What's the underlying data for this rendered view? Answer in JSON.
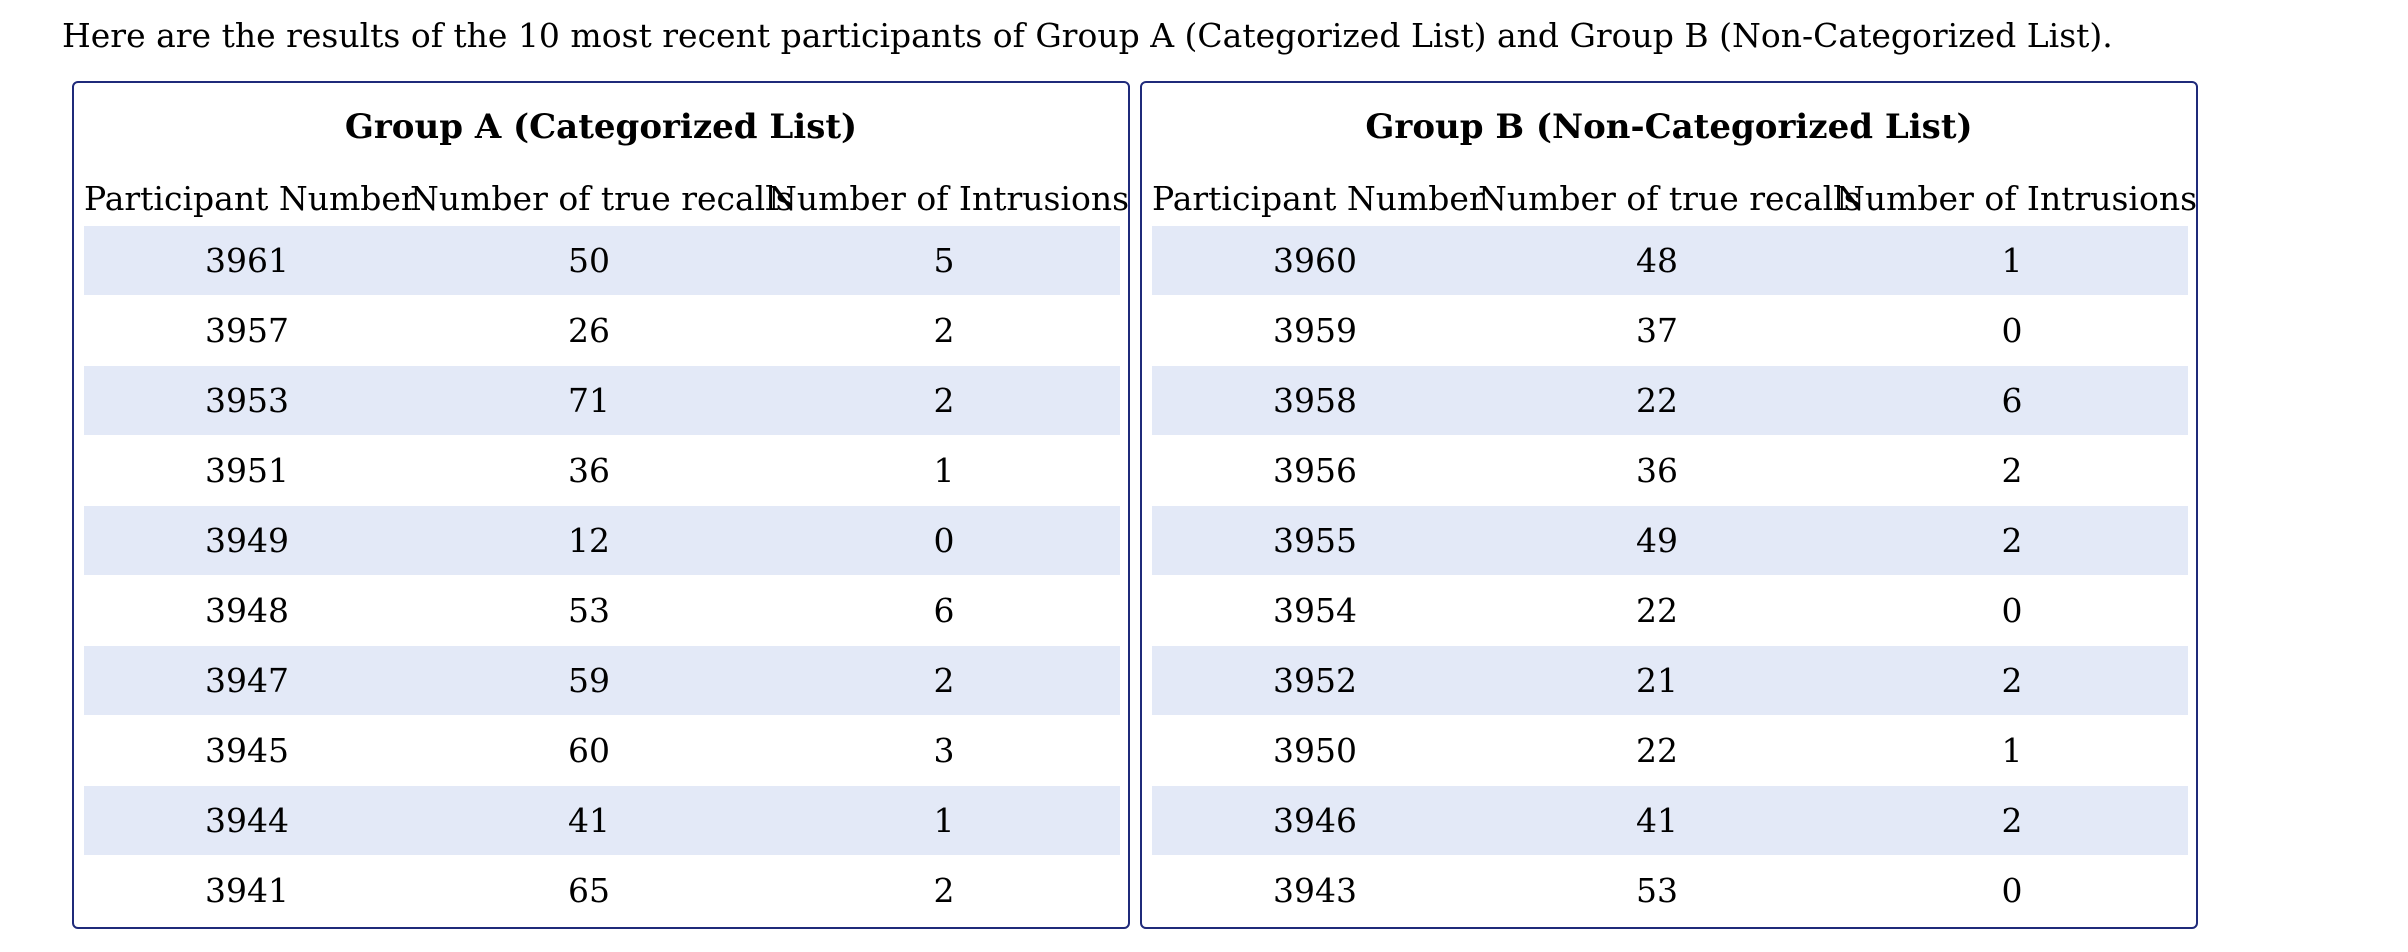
{
  "intro_text": "Here are the results of the 10 most recent participants of Group A (Categorized List) and Group B (Non-Categorized List).",
  "columns": [
    "Participant Number",
    "Number of true recalls",
    "Number of Intrusions"
  ],
  "groups": [
    {
      "title": "Group A (Categorized List)",
      "rows": [
        [
          "3961",
          "50",
          "5"
        ],
        [
          "3957",
          "26",
          "2"
        ],
        [
          "3953",
          "71",
          "2"
        ],
        [
          "3951",
          "36",
          "1"
        ],
        [
          "3949",
          "12",
          "0"
        ],
        [
          "3948",
          "53",
          "6"
        ],
        [
          "3947",
          "59",
          "2"
        ],
        [
          "3945",
          "60",
          "3"
        ],
        [
          "3944",
          "41",
          "1"
        ],
        [
          "3941",
          "65",
          "2"
        ]
      ]
    },
    {
      "title": "Group B (Non-Categorized List)",
      "rows": [
        [
          "3960",
          "48",
          "1"
        ],
        [
          "3959",
          "37",
          "0"
        ],
        [
          "3958",
          "22",
          "6"
        ],
        [
          "3956",
          "36",
          "2"
        ],
        [
          "3955",
          "49",
          "2"
        ],
        [
          "3954",
          "22",
          "0"
        ],
        [
          "3952",
          "21",
          "2"
        ],
        [
          "3950",
          "22",
          "1"
        ],
        [
          "3946",
          "41",
          "2"
        ],
        [
          "3943",
          "53",
          "0"
        ]
      ]
    }
  ],
  "colors": {
    "border": "#1f2a7a",
    "stripe": "#e3e9f7"
  }
}
